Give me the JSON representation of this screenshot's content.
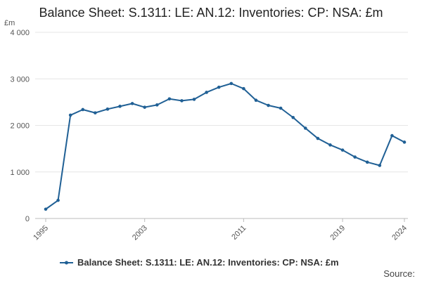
{
  "chart_data": {
    "type": "line",
    "title": "Balance Sheet: S.1311: LE: AN.12: Inventories: CP: NSA: £m",
    "ylabel": "£m",
    "xlabel": "",
    "ylim": [
      0,
      4000
    ],
    "yticks": [
      0,
      1000,
      2000,
      3000,
      4000
    ],
    "ytick_labels": [
      "0",
      "1 000",
      "2 000",
      "3 000",
      "4 000"
    ],
    "xticks": [
      1995,
      2003,
      2011,
      2019,
      2024
    ],
    "xtick_labels": [
      "1995",
      "2003",
      "2011",
      "2019",
      "2024"
    ],
    "x": [
      1995,
      1996,
      1997,
      1998,
      1999,
      2000,
      2001,
      2002,
      2003,
      2004,
      2005,
      2006,
      2007,
      2008,
      2009,
      2010,
      2011,
      2012,
      2013,
      2014,
      2015,
      2016,
      2017,
      2018,
      2019,
      2020,
      2021,
      2022,
      2023,
      2024
    ],
    "series": [
      {
        "name": "Balance Sheet: S.1311: LE: AN.12: Inventories: CP: NSA: £m",
        "color": "#206095",
        "values": [
          200,
          390,
          2220,
          2340,
          2270,
          2350,
          2410,
          2470,
          2390,
          2440,
          2570,
          2530,
          2560,
          2710,
          2820,
          2900,
          2790,
          2540,
          2430,
          2370,
          2170,
          1940,
          1720,
          1580,
          1470,
          1320,
          1210,
          1140,
          1780,
          1640
        ]
      }
    ],
    "grid": true,
    "legend": "bottom",
    "source_label": "Source:"
  }
}
